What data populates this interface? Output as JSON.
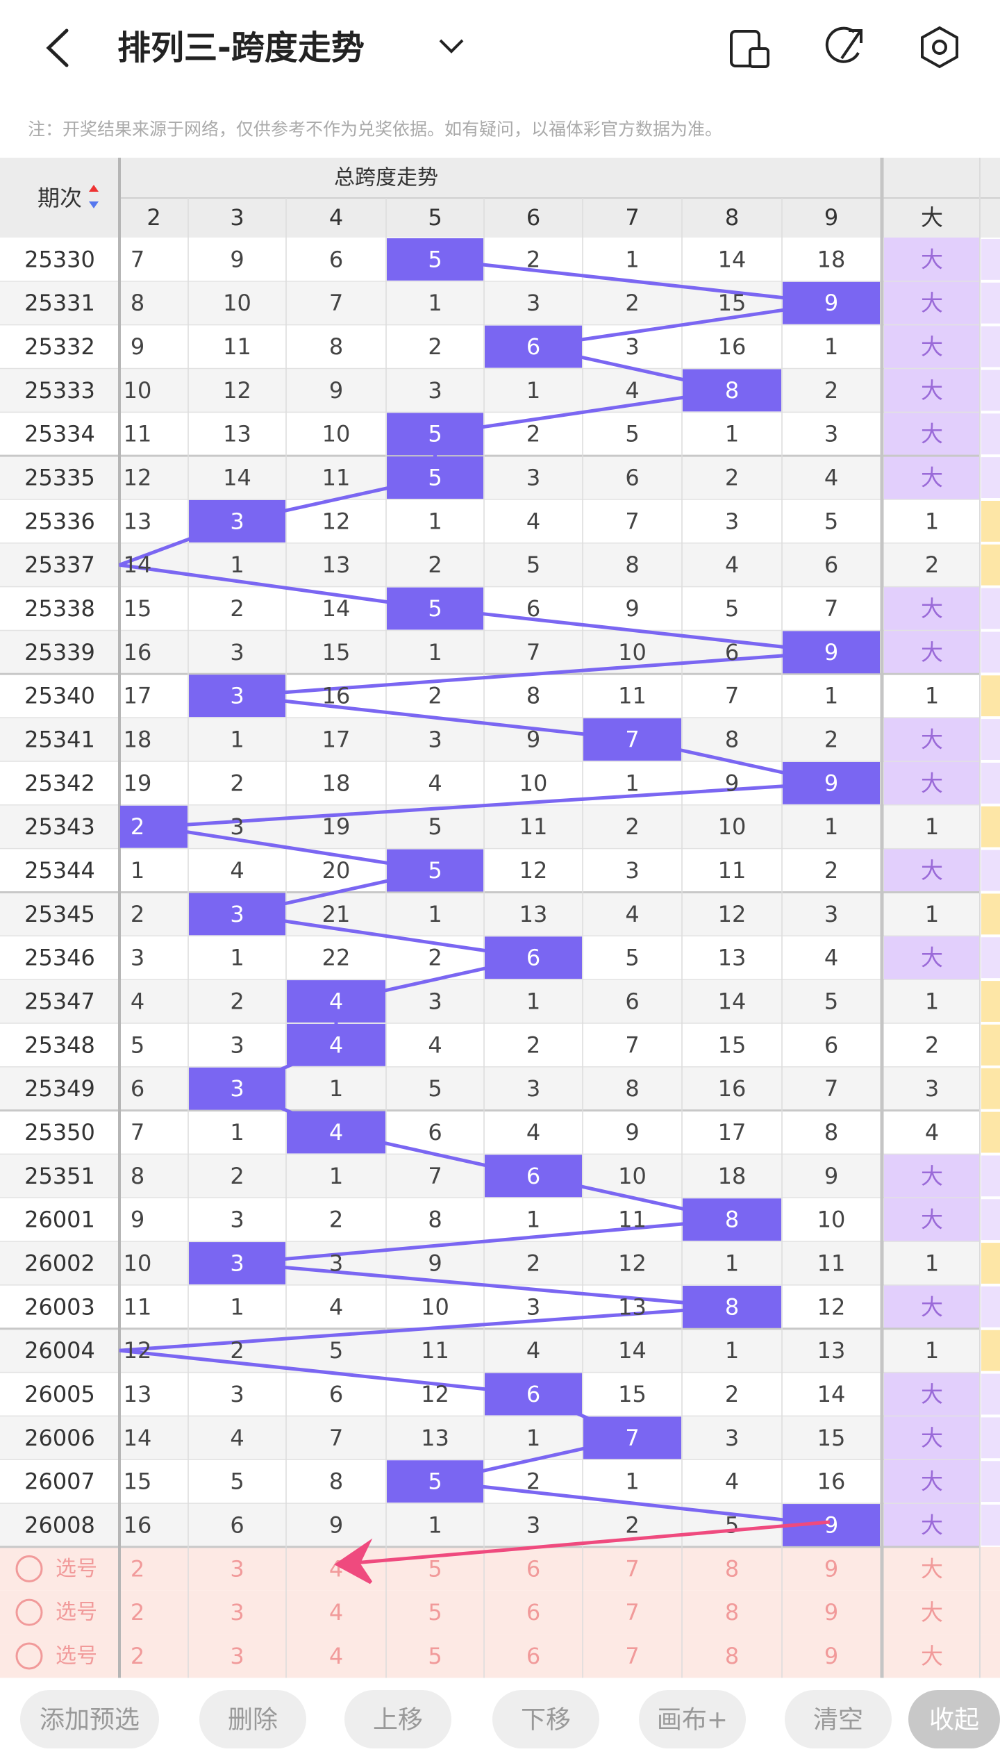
{
  "header": {
    "title": "排列三-跨度走势"
  },
  "notice": "注：开奖结果来源于网络，仅供参考不作为兑奖依据。如有疑问，以福体彩官方数据为准。",
  "table": {
    "issue_header": "期次",
    "group_header": "总跨度走势",
    "columns": [
      "2",
      "3",
      "4",
      "5",
      "6",
      "7",
      "8",
      "9"
    ],
    "size_header": "大",
    "rows": [
      {
        "issue": "25330",
        "cells": [
          "7",
          "9",
          "6",
          "5",
          "2",
          "1",
          "14",
          "18"
        ],
        "size": "大",
        "span": 5
      },
      {
        "issue": "25331",
        "cells": [
          "8",
          "10",
          "7",
          "1",
          "3",
          "2",
          "15",
          "9"
        ],
        "size": "大",
        "span": 9
      },
      {
        "issue": "25332",
        "cells": [
          "9",
          "11",
          "8",
          "2",
          "6",
          "3",
          "16",
          "1"
        ],
        "size": "大",
        "span": 6
      },
      {
        "issue": "25333",
        "cells": [
          "10",
          "12",
          "9",
          "3",
          "1",
          "4",
          "8",
          "2"
        ],
        "size": "大",
        "span": 8
      },
      {
        "issue": "25334",
        "cells": [
          "11",
          "13",
          "10",
          "5",
          "2",
          "5",
          "1",
          "3"
        ],
        "size": "大",
        "span": 5
      },
      {
        "issue": "25335",
        "cells": [
          "12",
          "14",
          "11",
          "5",
          "3",
          "6",
          "2",
          "4"
        ],
        "size": "大",
        "span": 5
      },
      {
        "issue": "25336",
        "cells": [
          "13",
          "3",
          "12",
          "1",
          "4",
          "7",
          "3",
          "5"
        ],
        "size": "1",
        "span": 3
      },
      {
        "issue": "25337",
        "cells": [
          "14",
          "1",
          "13",
          "2",
          "5",
          "8",
          "4",
          "6"
        ],
        "size": "2",
        "span": null
      },
      {
        "issue": "25338",
        "cells": [
          "15",
          "2",
          "14",
          "5",
          "6",
          "9",
          "5",
          "7"
        ],
        "size": "大",
        "span": 5
      },
      {
        "issue": "25339",
        "cells": [
          "16",
          "3",
          "15",
          "1",
          "7",
          "10",
          "6",
          "9"
        ],
        "size": "大",
        "span": 9
      },
      {
        "issue": "25340",
        "cells": [
          "17",
          "3",
          "16",
          "2",
          "8",
          "11",
          "7",
          "1"
        ],
        "size": "1",
        "span": 3
      },
      {
        "issue": "25341",
        "cells": [
          "18",
          "1",
          "17",
          "3",
          "9",
          "7",
          "8",
          "2"
        ],
        "size": "大",
        "span": 7
      },
      {
        "issue": "25342",
        "cells": [
          "19",
          "2",
          "18",
          "4",
          "10",
          "1",
          "9",
          "9"
        ],
        "size": "大",
        "span": 9
      },
      {
        "issue": "25343",
        "cells": [
          "2",
          "3",
          "19",
          "5",
          "11",
          "2",
          "10",
          "1"
        ],
        "size": "1",
        "span": 2
      },
      {
        "issue": "25344",
        "cells": [
          "1",
          "4",
          "20",
          "5",
          "12",
          "3",
          "11",
          "2"
        ],
        "size": "大",
        "span": 5
      },
      {
        "issue": "25345",
        "cells": [
          "2",
          "3",
          "21",
          "1",
          "13",
          "4",
          "12",
          "3"
        ],
        "size": "1",
        "span": 3
      },
      {
        "issue": "25346",
        "cells": [
          "3",
          "1",
          "22",
          "2",
          "6",
          "5",
          "13",
          "4"
        ],
        "size": "大",
        "span": 6
      },
      {
        "issue": "25347",
        "cells": [
          "4",
          "2",
          "4",
          "3",
          "1",
          "6",
          "14",
          "5"
        ],
        "size": "1",
        "span": 4
      },
      {
        "issue": "25348",
        "cells": [
          "5",
          "3",
          "4",
          "4",
          "2",
          "7",
          "15",
          "6"
        ],
        "size": "2",
        "span": 4
      },
      {
        "issue": "25349",
        "cells": [
          "6",
          "3",
          "1",
          "5",
          "3",
          "8",
          "16",
          "7"
        ],
        "size": "3",
        "span": 3
      },
      {
        "issue": "25350",
        "cells": [
          "7",
          "1",
          "4",
          "6",
          "4",
          "9",
          "17",
          "8"
        ],
        "size": "4",
        "span": 4
      },
      {
        "issue": "25351",
        "cells": [
          "8",
          "2",
          "1",
          "7",
          "6",
          "10",
          "18",
          "9"
        ],
        "size": "大",
        "span": 6
      },
      {
        "issue": "26001",
        "cells": [
          "9",
          "3",
          "2",
          "8",
          "1",
          "11",
          "8",
          "10"
        ],
        "size": "大",
        "span": 8
      },
      {
        "issue": "26002",
        "cells": [
          "10",
          "3",
          "3",
          "9",
          "2",
          "12",
          "1",
          "11"
        ],
        "size": "1",
        "span": 3
      },
      {
        "issue": "26003",
        "cells": [
          "11",
          "1",
          "4",
          "10",
          "3",
          "13",
          "8",
          "12"
        ],
        "size": "大",
        "span": 8
      },
      {
        "issue": "26004",
        "cells": [
          "12",
          "2",
          "5",
          "11",
          "4",
          "14",
          "1",
          "13"
        ],
        "size": "1",
        "span": null
      },
      {
        "issue": "26005",
        "cells": [
          "13",
          "3",
          "6",
          "12",
          "6",
          "15",
          "2",
          "14"
        ],
        "size": "大",
        "span": 6
      },
      {
        "issue": "26006",
        "cells": [
          "14",
          "4",
          "7",
          "13",
          "1",
          "7",
          "3",
          "15"
        ],
        "size": "大",
        "span": 7
      },
      {
        "issue": "26007",
        "cells": [
          "15",
          "5",
          "8",
          "5",
          "2",
          "1",
          "4",
          "16"
        ],
        "size": "大",
        "span": 5
      },
      {
        "issue": "26008",
        "cells": [
          "16",
          "6",
          "9",
          "1",
          "3",
          "2",
          "5",
          "9"
        ],
        "size": "大",
        "span": 9
      }
    ],
    "pick_rows": [
      {
        "label": "选号",
        "cells": [
          "2",
          "3",
          "4",
          "5",
          "6",
          "7",
          "8",
          "9"
        ],
        "size": "大"
      },
      {
        "label": "选号",
        "cells": [
          "2",
          "3",
          "4",
          "5",
          "6",
          "7",
          "8",
          "9"
        ],
        "size": "大"
      },
      {
        "label": "选号",
        "cells": [
          "2",
          "3",
          "4",
          "5",
          "6",
          "7",
          "8",
          "9"
        ],
        "size": "大"
      }
    ]
  },
  "buttons": [
    "添加预选",
    "删除",
    "上移",
    "下移",
    "画布+",
    "清空",
    "收起"
  ]
}
